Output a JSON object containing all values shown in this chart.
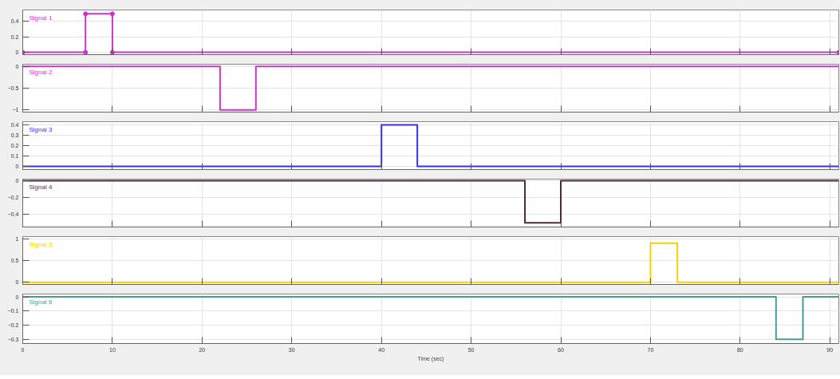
{
  "chart_data": [
    {
      "type": "line",
      "marker": "circle",
      "x": [
        0,
        7,
        7,
        10,
        10,
        91
      ],
      "series": [
        {
          "name": "Signal 1",
          "color": "#cc33cc",
          "values": [
            0,
            0,
            0.5,
            0.5,
            0,
            0
          ]
        }
      ],
      "xlim": [
        0,
        91
      ],
      "ylim": [
        -0.03,
        0.55
      ],
      "yticks": [
        0,
        0.2,
        0.4
      ],
      "xticks": [
        0,
        10,
        20,
        30,
        40,
        50,
        60,
        70,
        80,
        90
      ],
      "grid": true,
      "tick_labels": "y"
    },
    {
      "type": "line",
      "x": [
        0,
        22,
        22,
        26,
        26,
        91
      ],
      "series": [
        {
          "name": "Signal 2",
          "color": "#cc33cc",
          "values": [
            0,
            0,
            -1,
            -1,
            0,
            0
          ]
        }
      ],
      "xlim": [
        0,
        91
      ],
      "ylim": [
        -1.05,
        0.05
      ],
      "yticks": [
        -1,
        -0.5,
        0
      ],
      "xticks": [
        0,
        10,
        20,
        30,
        40,
        50,
        60,
        70,
        80,
        90
      ],
      "grid": true,
      "tick_labels": "y"
    },
    {
      "type": "line",
      "x": [
        0,
        40,
        40,
        44,
        44,
        91
      ],
      "series": [
        {
          "name": "Signal 3",
          "color": "#3333ee",
          "values": [
            0,
            0,
            0.4,
            0.4,
            0,
            0
          ]
        }
      ],
      "xlim": [
        0,
        91
      ],
      "ylim": [
        -0.03,
        0.43
      ],
      "yticks": [
        0,
        0.1,
        0.2,
        0.3,
        0.4
      ],
      "xticks": [
        0,
        10,
        20,
        30,
        40,
        50,
        60,
        70,
        80,
        90
      ],
      "grid": true,
      "tick_labels": "y"
    },
    {
      "type": "line",
      "x": [
        0,
        56,
        56,
        60,
        60,
        91
      ],
      "series": [
        {
          "name": "Signal 4",
          "color": "#4d2a3c",
          "values": [
            0,
            0,
            -0.5,
            -0.5,
            0,
            0
          ]
        }
      ],
      "xlim": [
        0,
        91
      ],
      "ylim": [
        -0.55,
        0.02
      ],
      "yticks": [
        -0.4,
        -0.2,
        0
      ],
      "xticks": [
        0,
        10,
        20,
        30,
        40,
        50,
        60,
        70,
        80,
        90
      ],
      "grid": true,
      "tick_labels": "y"
    },
    {
      "type": "line",
      "x": [
        0,
        70,
        70,
        73,
        73,
        91
      ],
      "series": [
        {
          "name": "Signal 5",
          "color": "#f5d200",
          "values": [
            0,
            0,
            0.9,
            0.9,
            0,
            0
          ]
        }
      ],
      "xlim": [
        0,
        91
      ],
      "ylim": [
        -0.05,
        1.05
      ],
      "yticks": [
        0,
        0.5,
        1
      ],
      "xticks": [
        0,
        10,
        20,
        30,
        40,
        50,
        60,
        70,
        80,
        90
      ],
      "grid": true,
      "tick_labels": "y"
    },
    {
      "type": "line",
      "x": [
        0,
        84,
        84,
        87,
        87,
        91
      ],
      "series": [
        {
          "name": "Signal 6",
          "color": "#4a9a9a",
          "values": [
            0,
            0,
            -0.3,
            -0.3,
            0,
            0
          ]
        }
      ],
      "xlim": [
        0,
        91
      ],
      "ylim": [
        -0.33,
        0.02
      ],
      "yticks": [
        -0.3,
        -0.2,
        -0.1,
        0
      ],
      "xticks": [
        0,
        10,
        20,
        30,
        40,
        50,
        60,
        70,
        80,
        90
      ],
      "grid": true,
      "xlabel": "Time (sec)"
    }
  ]
}
